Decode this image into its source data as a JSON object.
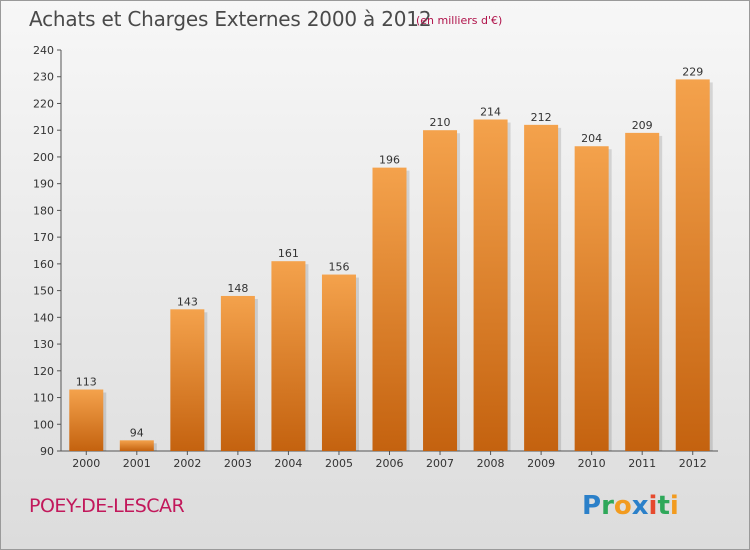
{
  "header": {
    "title": "Achats et Charges Externes 2000 à 2012",
    "unit": "(en milliers d'€)"
  },
  "footer": {
    "commune": "POEY-DE-LESCAR",
    "brand": "Proxiti"
  },
  "colors": {
    "bar_light": "#f4a24c",
    "bar_dark": "#c4620f",
    "title": "#4a4a4a",
    "commune": "#c2185b"
  },
  "chart_data": {
    "type": "bar",
    "title": "Achats et Charges Externes 2000 à 2012",
    "subtitle": "(en milliers d'€)",
    "categories": [
      "2000",
      "2001",
      "2002",
      "2003",
      "2004",
      "2005",
      "2006",
      "2007",
      "2008",
      "2009",
      "2010",
      "2011",
      "2012"
    ],
    "values": [
      113,
      94,
      143,
      148,
      161,
      156,
      196,
      210,
      214,
      212,
      204,
      209,
      229
    ],
    "xlabel": "",
    "ylabel": "",
    "ylim": [
      90,
      240
    ],
    "yticks": [
      90,
      100,
      110,
      120,
      130,
      140,
      150,
      160,
      170,
      180,
      190,
      200,
      210,
      220,
      230,
      240
    ],
    "grid": false,
    "legend": "none"
  }
}
